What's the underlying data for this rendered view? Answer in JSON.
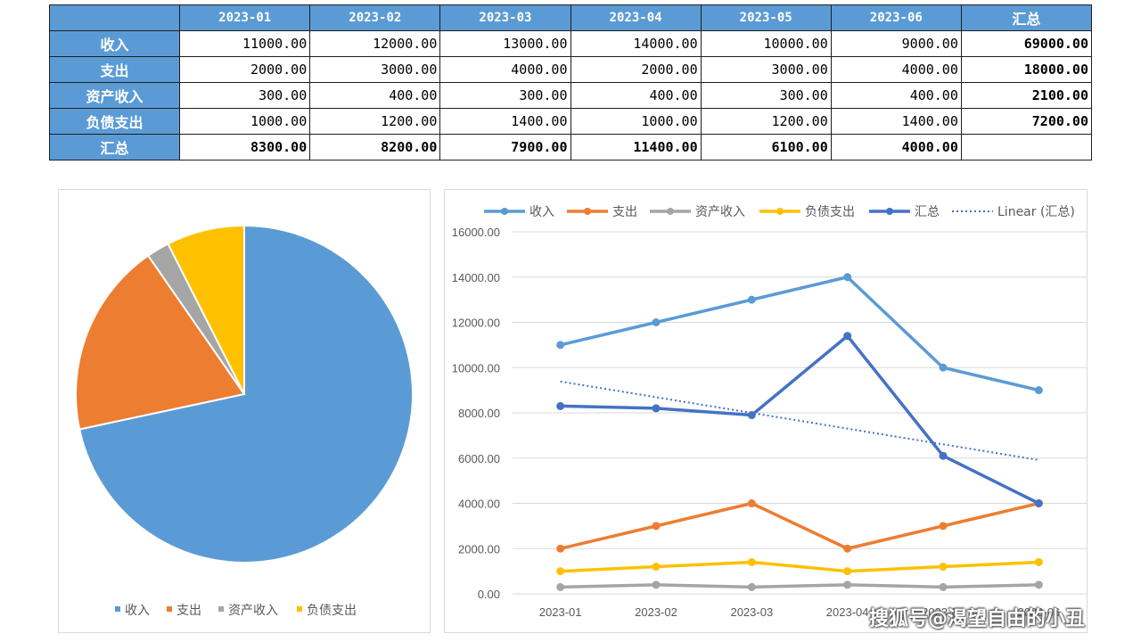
{
  "table": {
    "columns": [
      "2023-01",
      "2023-02",
      "2023-03",
      "2023-04",
      "2023-05",
      "2023-06",
      "汇总"
    ],
    "rows": [
      {
        "label": "收入",
        "values": [
          "11000.00",
          "12000.00",
          "13000.00",
          "14000.00",
          "10000.00",
          "9000.00"
        ],
        "total": "69000.00"
      },
      {
        "label": "支出",
        "values": [
          "2000.00",
          "3000.00",
          "4000.00",
          "2000.00",
          "3000.00",
          "4000.00"
        ],
        "total": "18000.00"
      },
      {
        "label": "资产收入",
        "values": [
          "300.00",
          "400.00",
          "300.00",
          "400.00",
          "300.00",
          "400.00"
        ],
        "total": "2100.00"
      },
      {
        "label": "负债支出",
        "values": [
          "1000.00",
          "1200.00",
          "1400.00",
          "1000.00",
          "1200.00",
          "1400.00"
        ],
        "total": "7200.00"
      }
    ],
    "total_row": {
      "label": "汇总",
      "values": [
        "8300.00",
        "8200.00",
        "7900.00",
        "11400.00",
        "6100.00",
        "4000.00"
      ],
      "total": ""
    }
  },
  "chart_data": [
    {
      "type": "pie",
      "categories": [
        "收入",
        "支出",
        "资产收入",
        "负债支出"
      ],
      "values": [
        69000,
        18000,
        2100,
        7200
      ],
      "colors": [
        "#5b9bd5",
        "#ed7d31",
        "#a5a5a5",
        "#ffc000"
      ],
      "legend_position": "bottom"
    },
    {
      "type": "line",
      "categories": [
        "2023-01",
        "2023-02",
        "2023-03",
        "2023-04",
        "2023-05",
        "2023-06"
      ],
      "series": [
        {
          "name": "收入",
          "values": [
            11000,
            12000,
            13000,
            14000,
            10000,
            9000
          ],
          "color": "#5b9bd5"
        },
        {
          "name": "支出",
          "values": [
            2000,
            3000,
            4000,
            2000,
            3000,
            4000
          ],
          "color": "#ed7d31"
        },
        {
          "name": "资产收入",
          "values": [
            300,
            400,
            300,
            400,
            300,
            400
          ],
          "color": "#a5a5a5"
        },
        {
          "name": "负债支出",
          "values": [
            1000,
            1200,
            1400,
            1000,
            1200,
            1400
          ],
          "color": "#ffc000"
        },
        {
          "name": "汇总",
          "values": [
            8300,
            8200,
            7900,
            11400,
            6100,
            4000
          ],
          "color": "#4472c4"
        }
      ],
      "trendline": {
        "name": "Linear (汇总)",
        "series": "汇总",
        "type": "linear",
        "color": "#4472c4"
      },
      "ylim": [
        0,
        16000
      ],
      "yticks": [
        "0.00",
        "2000.00",
        "4000.00",
        "6000.00",
        "8000.00",
        "10000.00",
        "12000.00",
        "14000.00",
        "16000.00"
      ],
      "legend_position": "top",
      "grid": true
    }
  ],
  "watermark": "搜狐号@渴望自由的小丑"
}
